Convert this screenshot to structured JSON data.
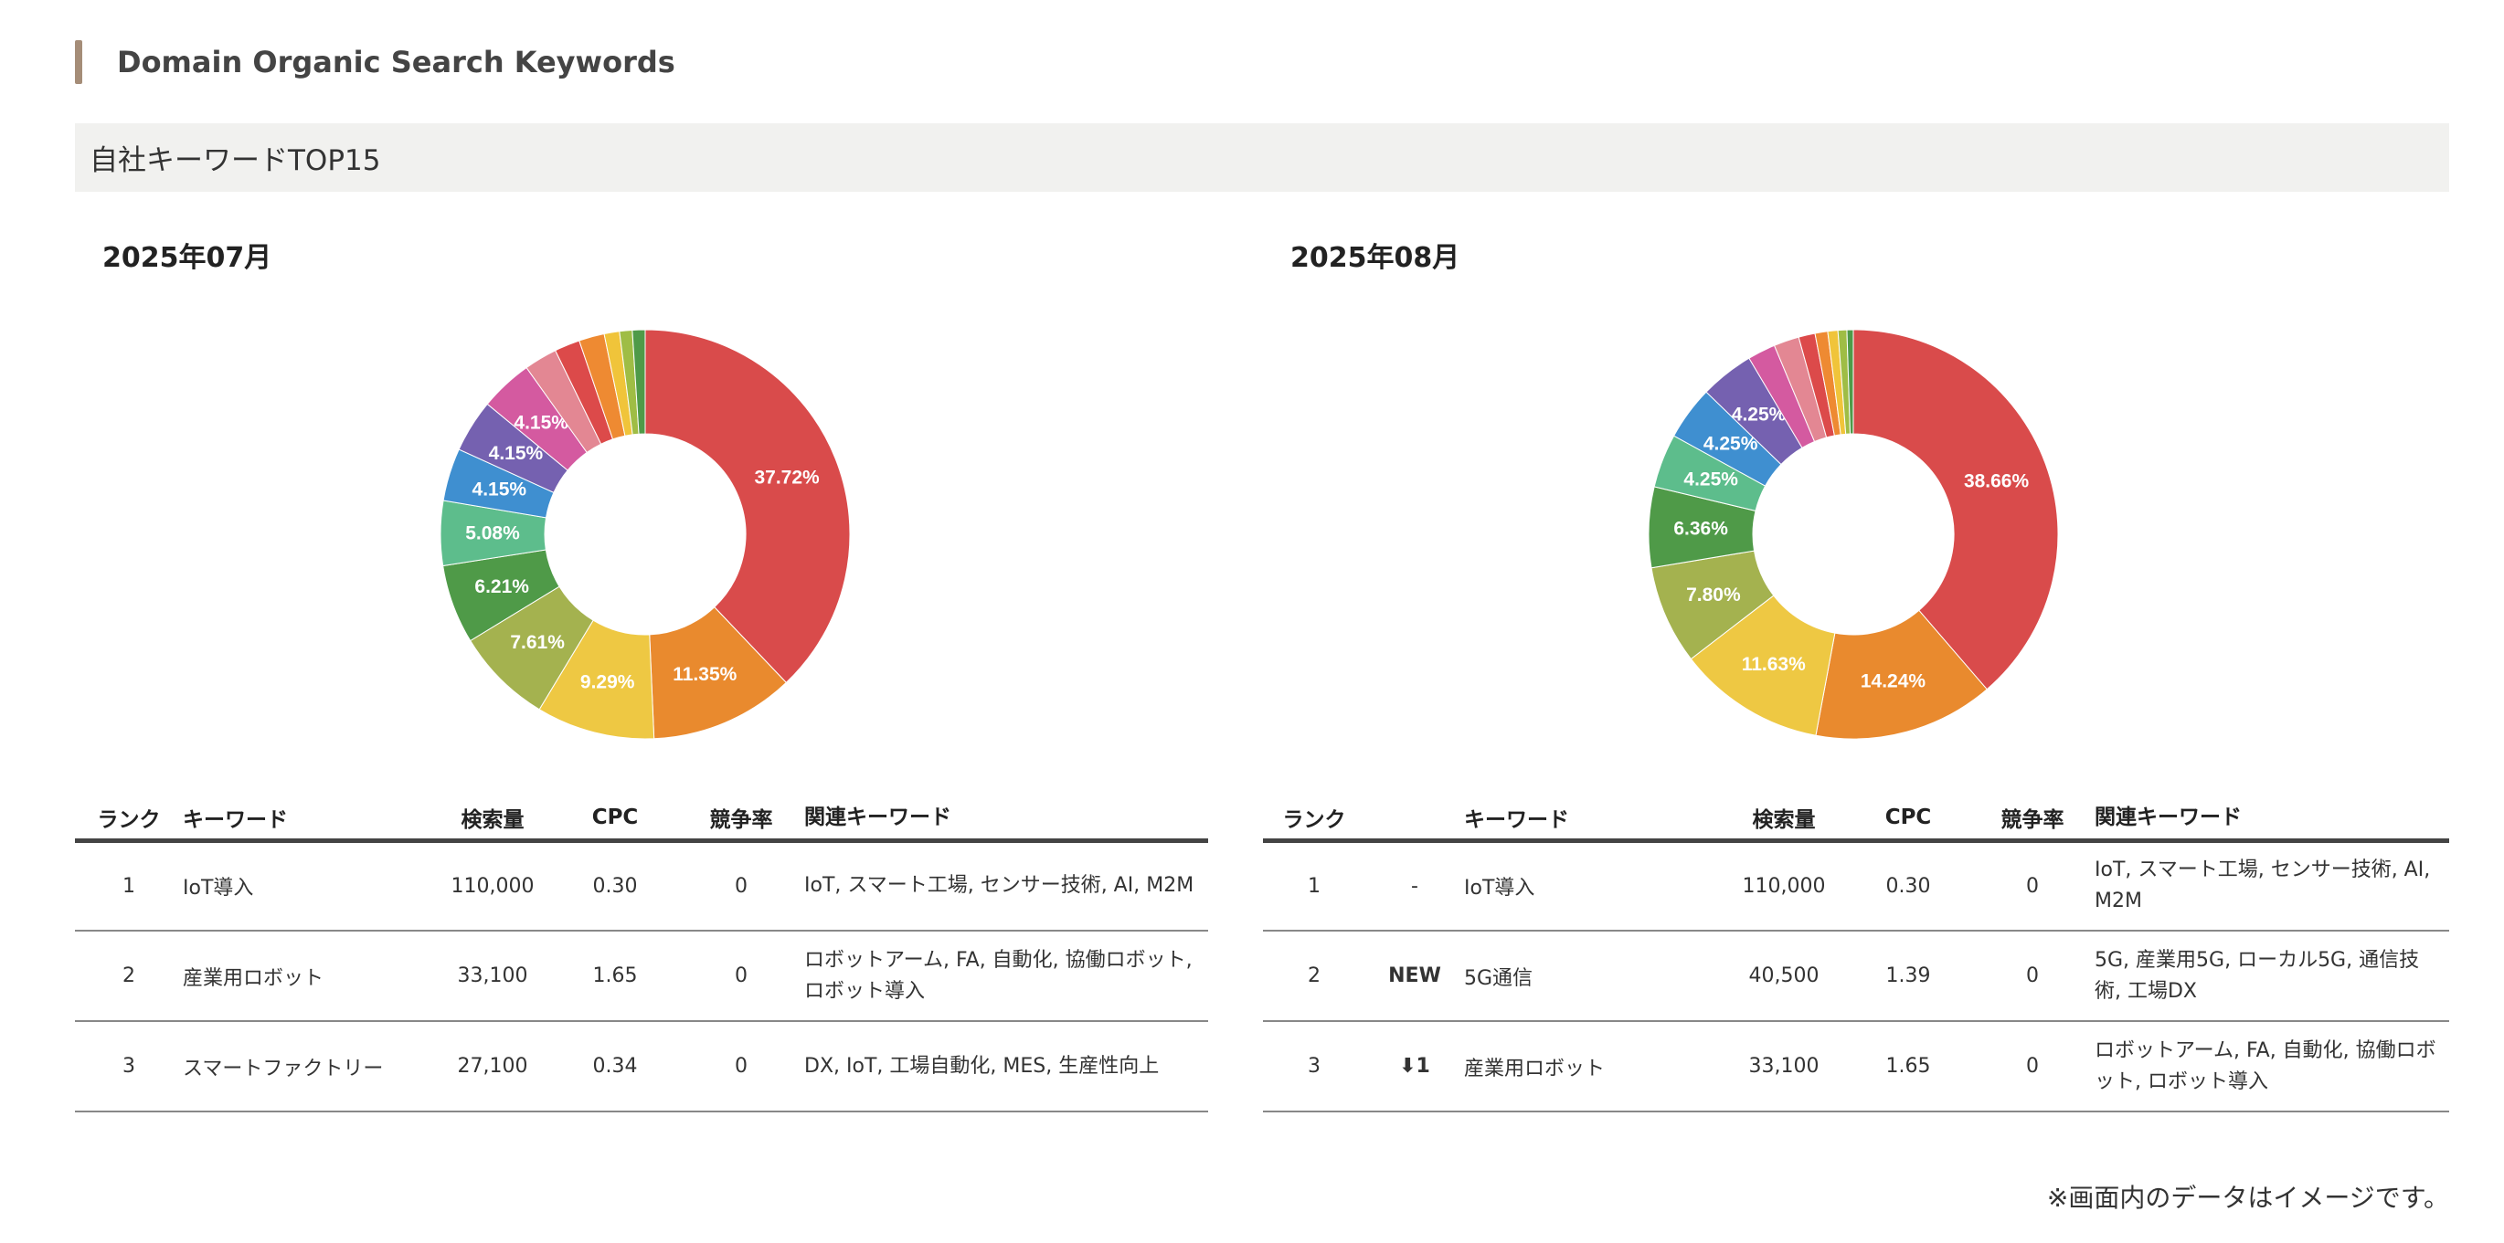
{
  "header": {
    "title": "Domain Organic Search Keywords",
    "subtitle": "自社キーワードTOP15"
  },
  "colors": {
    "accent_bar": "#a58d78",
    "subheader_bg": "#f1f1ef",
    "slices": [
      "#d94b4b",
      "#e98a2e",
      "#eec843",
      "#a4b24f",
      "#4f9a48",
      "#5dbd8c",
      "#3f8fd0",
      "#7561b0",
      "#d45aa0",
      "#e38793",
      "#dc4a4a",
      "#ee8a32",
      "#f0c43a",
      "#9fbd45",
      "#4f9a48"
    ]
  },
  "panels": [
    {
      "month": "2025年07月",
      "chart_data": {
        "type": "pie",
        "subtype": "donut",
        "title": "2025年07月",
        "values": [
          37.72,
          11.35,
          9.29,
          7.61,
          6.21,
          5.08,
          4.15,
          4.15,
          4.15,
          2.6,
          2.0,
          2.0,
          1.2,
          1.0,
          1.0
        ],
        "labels": [
          "37.72%",
          "11.35%",
          "9.29%",
          "7.61%",
          "6.21%",
          "5.08%",
          "4.15%",
          "4.15%",
          "4.15%",
          "",
          "",
          "",
          "",
          "",
          ""
        ]
      },
      "table": {
        "headers": [
          "ランク",
          "キーワード",
          "検索量",
          "CPC",
          "競争率",
          "関連キーワード"
        ],
        "rows": [
          {
            "rank": "1",
            "keyword": "IoT導入",
            "volume": "110,000",
            "cpc": "0.30",
            "competition": "0",
            "related": "IoT, スマート工場, センサー技術, AI, M2M"
          },
          {
            "rank": "2",
            "keyword": "産業用ロボット",
            "volume": "33,100",
            "cpc": "1.65",
            "competition": "0",
            "related": "ロボットアーム, FA, 自動化, 協働ロボット, ロボット導入"
          },
          {
            "rank": "3",
            "keyword": "スマートファクトリー",
            "volume": "27,100",
            "cpc": "0.34",
            "competition": "0",
            "related": "DX, IoT, 工場自動化, MES, 生産性向上"
          }
        ]
      }
    },
    {
      "month": "2025年08月",
      "chart_data": {
        "type": "pie",
        "subtype": "donut",
        "title": "2025年08月",
        "values": [
          38.66,
          14.24,
          11.63,
          7.8,
          6.36,
          4.25,
          4.25,
          4.25,
          2.2,
          2.0,
          1.3,
          1.0,
          0.8,
          0.7,
          0.5
        ],
        "labels": [
          "38.66%",
          "14.24%",
          "11.63%",
          "7.80%",
          "6.36%",
          "4.25%",
          "4.25%",
          "4.25%",
          "",
          "",
          "",
          "",
          "",
          "",
          ""
        ]
      },
      "table": {
        "headers": [
          "ランク",
          "",
          "キーワード",
          "検索量",
          "CPC",
          "競争率",
          "関連キーワード"
        ],
        "rows": [
          {
            "rank": "1",
            "change": "-",
            "change_type": "same",
            "keyword": "IoT導入",
            "volume": "110,000",
            "cpc": "0.30",
            "competition": "0",
            "related": "IoT, スマート工場, センサー技術, AI, M2M"
          },
          {
            "rank": "2",
            "change": "NEW",
            "change_type": "new",
            "keyword": "5G通信",
            "volume": "40,500",
            "cpc": "1.39",
            "competition": "0",
            "related": "5G, 産業用5G, ローカル5G, 通信技術, 工場DX"
          },
          {
            "rank": "3",
            "change": "⬇1",
            "change_type": "down",
            "keyword": "産業用ロボット",
            "volume": "33,100",
            "cpc": "1.65",
            "competition": "0",
            "related": "ロボットアーム, FA, 自動化, 協働ロボット, ロボット導入"
          }
        ]
      }
    }
  ],
  "footnote": "※画面内のデータはイメージです。"
}
